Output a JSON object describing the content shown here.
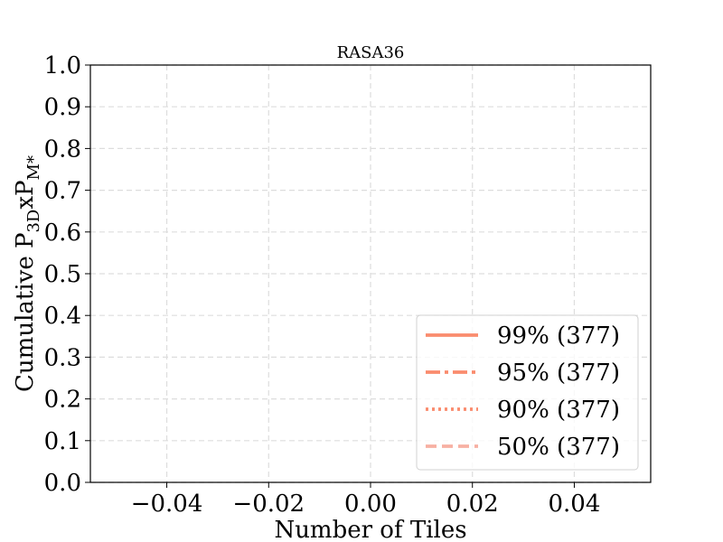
{
  "chart_data": {
    "type": "line",
    "title": "RASA36",
    "xlabel": "Number of Tiles",
    "ylabel_main": "Cumulative P",
    "ylabel_sub1": "3D",
    "ylabel_mid": "xP",
    "ylabel_sub2": "M*",
    "xlim": [
      -0.055,
      0.055
    ],
    "ylim": [
      0.0,
      1.0
    ],
    "x_ticks": [
      -0.04,
      -0.02,
      0.0,
      0.02,
      0.04
    ],
    "x_tick_labels": [
      "−0.04",
      "−0.02",
      "0.00",
      "0.02",
      "0.04"
    ],
    "y_ticks": [
      0.0,
      0.1,
      0.2,
      0.3,
      0.4,
      0.5,
      0.6,
      0.7,
      0.8,
      0.9,
      1.0
    ],
    "y_tick_labels": [
      "0.0",
      "0.1",
      "0.2",
      "0.3",
      "0.4",
      "0.5",
      "0.6",
      "0.7",
      "0.8",
      "0.9",
      "1.0"
    ],
    "grid": true,
    "legend_position": "lower-right",
    "series": [
      {
        "name": "99% (377)",
        "style": "solid",
        "color": "#fa8c6e",
        "opacity": 1.0,
        "x": [],
        "y": []
      },
      {
        "name": "95% (377)",
        "style": "dashdot",
        "color": "#fa8c6e",
        "opacity": 1.0,
        "x": [],
        "y": []
      },
      {
        "name": "90% (377)",
        "style": "dotted",
        "color": "#fa8c6e",
        "opacity": 1.0,
        "x": [],
        "y": []
      },
      {
        "name": "50% (377)",
        "style": "dashed",
        "color": "#f7b0a3",
        "opacity": 1.0,
        "x": [],
        "y": []
      }
    ]
  }
}
